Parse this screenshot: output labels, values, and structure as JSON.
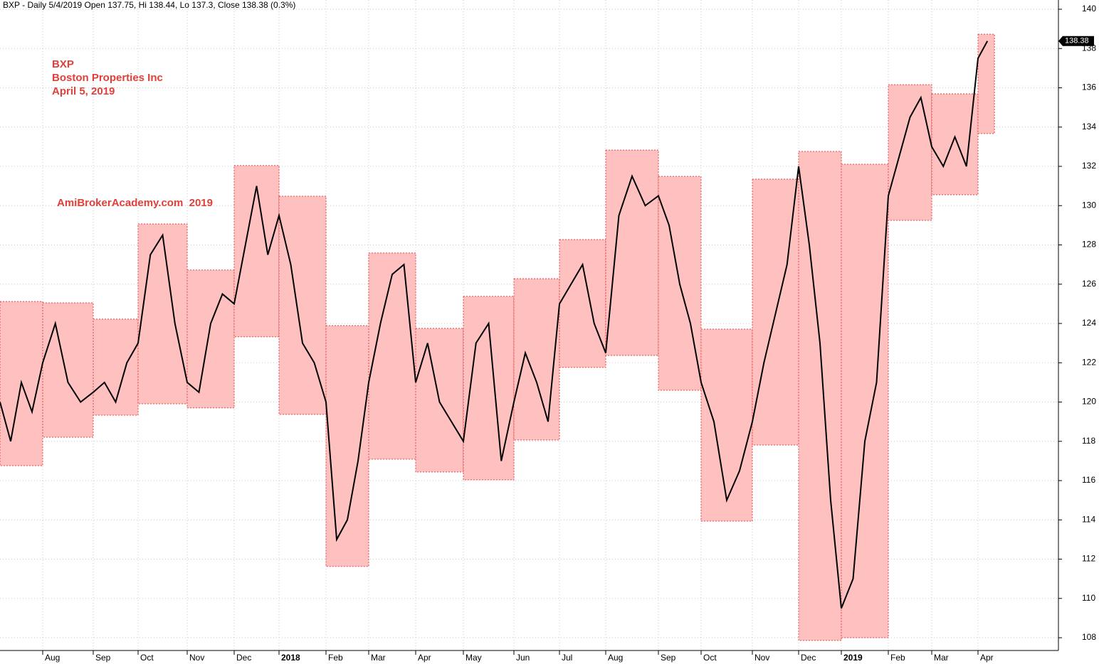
{
  "chart_data": {
    "type": "range-box-line",
    "title": "BXP - Daily 5/4/2019 Open 137.75, Hi 138.44, Lo 137.3, Close 138.38 (0.3%)",
    "annotations": [
      "BXP",
      "Boston Properties Inc",
      "April 5, 2019",
      "AmiBrokerAcademy.com  2019"
    ],
    "ylim": [
      107.35,
      140.47
    ],
    "yticks": [
      108,
      110,
      112,
      114,
      116,
      118,
      120,
      122,
      124,
      126,
      128,
      130,
      132,
      134,
      136,
      138,
      140
    ],
    "xlim": [
      0,
      22
    ],
    "xticks": [
      {
        "value": 1,
        "label": "Aug"
      },
      {
        "value": 2,
        "label": "Sep"
      },
      {
        "value": 3,
        "label": "Oct"
      },
      {
        "value": 4,
        "label": "Nov"
      },
      {
        "value": 5,
        "label": "Dec"
      },
      {
        "value": 6,
        "label": "2018"
      },
      {
        "value": 7,
        "label": "Feb"
      },
      {
        "value": 8,
        "label": "Mar"
      },
      {
        "value": 9,
        "label": "Apr"
      },
      {
        "value": 10,
        "label": "May"
      },
      {
        "value": 11,
        "label": "Jun"
      },
      {
        "value": 12,
        "label": "Jul"
      },
      {
        "value": 13,
        "label": "Aug"
      },
      {
        "value": 14,
        "label": "Sep"
      },
      {
        "value": 15,
        "label": "Oct"
      },
      {
        "value": 16,
        "label": "Nov"
      },
      {
        "value": 17,
        "label": "Dec"
      },
      {
        "value": 18,
        "label": "2019"
      },
      {
        "value": 19,
        "label": "Feb"
      },
      {
        "value": 20,
        "label": "Mar"
      },
      {
        "value": 21,
        "label": "Apr"
      }
    ],
    "grid": true,
    "box_color": "#ffc0c0",
    "box_edge_color": "#e04848",
    "boxes": [
      {
        "start": 0,
        "end": 1,
        "high": 125.12,
        "low": 116.76
      },
      {
        "start": 1,
        "end": 2,
        "high": 125.05,
        "low": 118.21
      },
      {
        "start": 2,
        "end": 3,
        "high": 124.22,
        "low": 119.33
      },
      {
        "start": 3,
        "end": 4,
        "high": 129.07,
        "low": 119.91
      },
      {
        "start": 4,
        "end": 5,
        "high": 126.72,
        "low": 119.7
      },
      {
        "start": 5,
        "end": 6,
        "high": 132.04,
        "low": 123.32
      },
      {
        "start": 6,
        "end": 7,
        "high": 130.48,
        "low": 119.37
      },
      {
        "start": 7,
        "end": 8,
        "high": 123.89,
        "low": 111.63
      },
      {
        "start": 8,
        "end": 9,
        "high": 127.59,
        "low": 117.09
      },
      {
        "start": 9,
        "end": 10,
        "high": 123.75,
        "low": 116.44
      },
      {
        "start": 10,
        "end": 11,
        "high": 125.38,
        "low": 116.04
      },
      {
        "start": 11,
        "end": 12,
        "high": 126.28,
        "low": 118.07
      },
      {
        "start": 12,
        "end": 13,
        "high": 128.27,
        "low": 121.76
      },
      {
        "start": 13,
        "end": 14,
        "high": 132.83,
        "low": 122.37
      },
      {
        "start": 14,
        "end": 15,
        "high": 131.49,
        "low": 120.6
      },
      {
        "start": 15,
        "end": 16,
        "high": 123.71,
        "low": 113.94
      },
      {
        "start": 16,
        "end": 17,
        "high": 131.35,
        "low": 117.81
      },
      {
        "start": 17,
        "end": 18,
        "high": 132.76,
        "low": 107.86
      },
      {
        "start": 18,
        "end": 19,
        "high": 132.11,
        "low": 108.0
      },
      {
        "start": 19,
        "end": 20,
        "high": 136.16,
        "low": 129.25
      },
      {
        "start": 20,
        "end": 21,
        "high": 135.69,
        "low": 130.55
      },
      {
        "start": 21,
        "end": 21.35,
        "high": 138.73,
        "low": 133.67
      }
    ],
    "series": [
      {
        "name": "BXP",
        "color": "#000000",
        "x": [
          0,
          0.25,
          0.5,
          0.75,
          1,
          1.25,
          1.5,
          1.75,
          2,
          2.25,
          2.5,
          2.75,
          3,
          3.25,
          3.5,
          3.75,
          4,
          4.25,
          4.5,
          4.75,
          5,
          5.25,
          5.5,
          5.75,
          6,
          6.25,
          6.5,
          6.75,
          7,
          7.25,
          7.5,
          7.75,
          8,
          8.25,
          8.5,
          8.75,
          9,
          9.25,
          9.5,
          9.75,
          10,
          10.25,
          10.5,
          10.75,
          11,
          11.25,
          11.5,
          11.75,
          12,
          12.25,
          12.5,
          12.75,
          13,
          13.25,
          13.5,
          13.75,
          14,
          14.25,
          14.5,
          14.75,
          15,
          15.25,
          15.5,
          15.75,
          16,
          16.25,
          16.5,
          16.75,
          17,
          17.25,
          17.5,
          17.75,
          18,
          18.25,
          18.5,
          18.75,
          19,
          19.25,
          19.5,
          19.75,
          20,
          20.25,
          20.5,
          20.75,
          21,
          21.2
        ],
        "values": [
          120,
          118,
          121,
          119.5,
          122,
          124,
          121,
          120,
          120.5,
          121,
          120,
          122,
          123,
          127.5,
          128.5,
          124,
          121,
          120.5,
          124,
          125.5,
          125,
          128,
          131,
          127.5,
          129.5,
          127,
          123,
          122,
          120,
          113,
          114,
          117,
          121,
          124,
          126.5,
          127,
          121,
          123,
          120,
          119,
          118,
          123,
          124,
          117,
          120,
          122.5,
          121,
          119,
          125,
          126,
          127,
          124,
          122.5,
          129.5,
          131.5,
          130,
          130.5,
          129,
          126,
          124,
          121,
          119,
          115,
          116.5,
          119,
          122,
          124.5,
          127,
          132,
          128,
          123,
          115,
          109.5,
          111,
          118,
          121,
          130.5,
          132.5,
          134.5,
          135.5,
          133,
          132,
          133.5,
          132,
          137.5,
          138.38
        ]
      }
    ]
  }
}
